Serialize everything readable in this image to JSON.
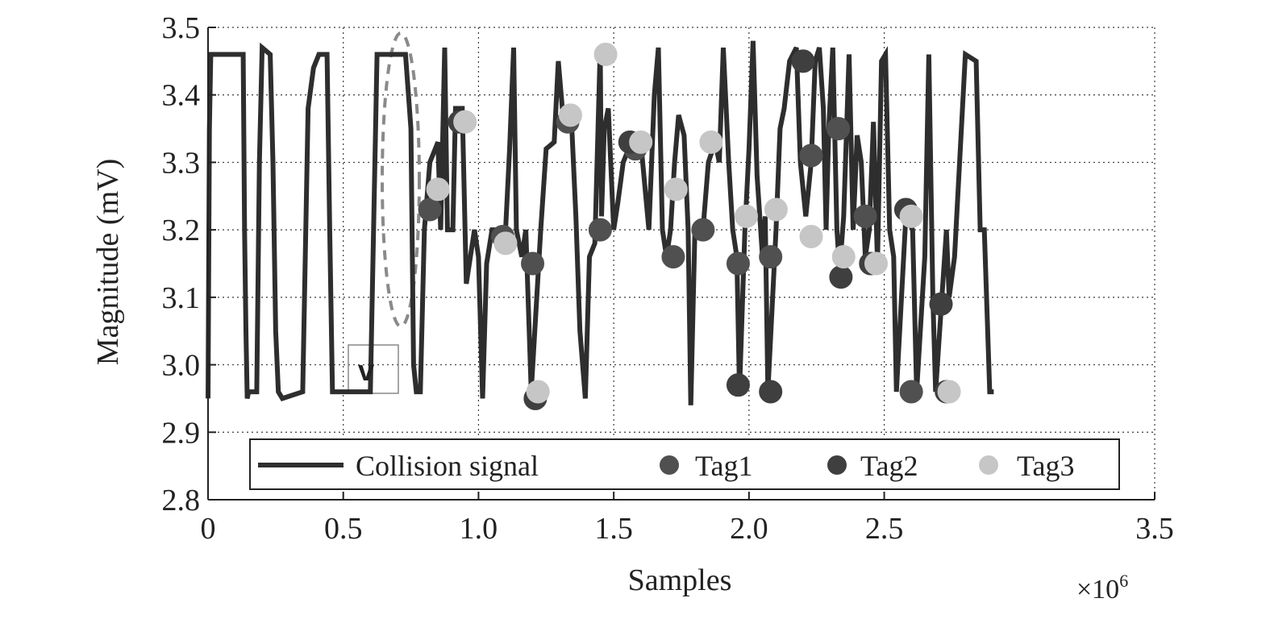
{
  "chart_data": {
    "type": "line",
    "xlabel": "Samples",
    "ylabel": "Magnitude (mV)",
    "x_multiplier_label": "×10",
    "x_multiplier_exponent": "6",
    "annotation_label": "v",
    "xlim": [
      0,
      3.5
    ],
    "ylim": [
      2.8,
      3.5
    ],
    "x_ticks": [
      0,
      0.5,
      1.0,
      1.5,
      2.0,
      2.5,
      3.5
    ],
    "x_tick_labels": [
      "0",
      "0.5",
      "1.0",
      "1.5",
      "2.0",
      "2.5",
      "3.5"
    ],
    "y_ticks": [
      2.8,
      2.9,
      3.0,
      3.1,
      3.2,
      3.3,
      3.4,
      3.5
    ],
    "y_tick_labels": [
      "2.8",
      "2.9",
      "3.0",
      "3.1",
      "3.2",
      "3.3",
      "3.4",
      "3.5"
    ],
    "grid": true,
    "legend_position": "bottom",
    "colors": {
      "signal": "#2e2e2e",
      "tag1": "#505050",
      "tag2": "#3f3f3f",
      "tag3": "#c6c6c6",
      "grid": "#3a3a3a"
    },
    "series": [
      {
        "name": "Collision signal",
        "kind": "line",
        "points": [
          [
            0,
            2.95
          ],
          [
            0.005,
            3.35
          ],
          [
            0.01,
            3.46
          ],
          [
            0.13,
            3.46
          ],
          [
            0.135,
            3.2
          ],
          [
            0.14,
            3.05
          ],
          [
            0.145,
            2.95
          ],
          [
            0.15,
            2.96
          ],
          [
            0.18,
            2.96
          ],
          [
            0.19,
            3.3
          ],
          [
            0.2,
            3.47
          ],
          [
            0.23,
            3.46
          ],
          [
            0.24,
            3.3
          ],
          [
            0.25,
            3.05
          ],
          [
            0.26,
            2.96
          ],
          [
            0.275,
            2.95
          ],
          [
            0.35,
            2.96
          ],
          [
            0.37,
            3.38
          ],
          [
            0.39,
            3.44
          ],
          [
            0.41,
            3.46
          ],
          [
            0.44,
            3.46
          ],
          [
            0.45,
            3.2
          ],
          [
            0.46,
            2.96
          ],
          [
            0.6,
            2.96
          ],
          [
            0.625,
            3.46
          ],
          [
            0.73,
            3.46
          ],
          [
            0.75,
            3.35
          ],
          [
            0.76,
            3.0
          ],
          [
            0.77,
            2.96
          ],
          [
            0.785,
            2.96
          ],
          [
            0.8,
            3.2
          ],
          [
            0.82,
            3.3
          ],
          [
            0.85,
            3.33
          ],
          [
            0.86,
            3.2
          ],
          [
            0.875,
            3.47
          ],
          [
            0.885,
            3.2
          ],
          [
            0.905,
            3.2
          ],
          [
            0.915,
            3.38
          ],
          [
            0.94,
            3.38
          ],
          [
            0.955,
            3.12
          ],
          [
            0.985,
            3.2
          ],
          [
            1.0,
            3.16
          ],
          [
            1.015,
            2.95
          ],
          [
            1.03,
            3.15
          ],
          [
            1.05,
            3.2
          ],
          [
            1.1,
            3.2
          ],
          [
            1.115,
            3.32
          ],
          [
            1.13,
            3.47
          ],
          [
            1.14,
            3.2
          ],
          [
            1.16,
            3.16
          ],
          [
            1.175,
            3.2
          ],
          [
            1.195,
            2.96
          ],
          [
            1.23,
            3.2
          ],
          [
            1.25,
            3.32
          ],
          [
            1.28,
            3.33
          ],
          [
            1.295,
            3.45
          ],
          [
            1.31,
            3.38
          ],
          [
            1.33,
            3.35
          ],
          [
            1.345,
            3.35
          ],
          [
            1.36,
            3.22
          ],
          [
            1.375,
            3.05
          ],
          [
            1.395,
            2.95
          ],
          [
            1.41,
            3.16
          ],
          [
            1.43,
            3.18
          ],
          [
            1.45,
            3.47
          ],
          [
            1.455,
            3.22
          ],
          [
            1.465,
            3.35
          ],
          [
            1.48,
            3.38
          ],
          [
            1.5,
            3.2
          ],
          [
            1.515,
            3.24
          ],
          [
            1.535,
            3.3
          ],
          [
            1.555,
            3.32
          ],
          [
            1.57,
            3.32
          ],
          [
            1.6,
            3.33
          ],
          [
            1.63,
            3.2
          ],
          [
            1.65,
            3.4
          ],
          [
            1.665,
            3.47
          ],
          [
            1.68,
            3.2
          ],
          [
            1.695,
            3.16
          ],
          [
            1.71,
            3.2
          ],
          [
            1.725,
            3.3
          ],
          [
            1.74,
            3.37
          ],
          [
            1.76,
            3.34
          ],
          [
            1.775,
            3.2
          ],
          [
            1.785,
            2.94
          ],
          [
            1.8,
            3.2
          ],
          [
            1.83,
            3.2
          ],
          [
            1.85,
            3.3
          ],
          [
            1.875,
            3.33
          ],
          [
            1.89,
            3.3
          ],
          [
            1.905,
            3.47
          ],
          [
            1.925,
            3.3
          ],
          [
            1.94,
            3.2
          ],
          [
            1.955,
            3.16
          ],
          [
            1.965,
            2.96
          ],
          [
            1.985,
            3.2
          ],
          [
            2.0,
            3.32
          ],
          [
            2.015,
            3.48
          ],
          [
            2.03,
            3.28
          ],
          [
            2.05,
            3.16
          ],
          [
            2.06,
            3.22
          ],
          [
            2.07,
            2.96
          ],
          [
            2.1,
            3.2
          ],
          [
            2.115,
            3.35
          ],
          [
            2.13,
            3.38
          ],
          [
            2.15,
            3.45
          ],
          [
            2.175,
            3.47
          ],
          [
            2.19,
            3.3
          ],
          [
            2.21,
            3.22
          ],
          [
            2.23,
            3.3
          ],
          [
            2.245,
            3.45
          ],
          [
            2.26,
            3.47
          ],
          [
            2.275,
            3.38
          ],
          [
            2.285,
            3.2
          ],
          [
            2.295,
            3.35
          ],
          [
            2.31,
            3.47
          ],
          [
            2.325,
            3.2
          ],
          [
            2.335,
            3.14
          ],
          [
            2.35,
            3.22
          ],
          [
            2.37,
            3.46
          ],
          [
            2.385,
            3.2
          ],
          [
            2.4,
            3.34
          ],
          [
            2.415,
            3.3
          ],
          [
            2.43,
            3.16
          ],
          [
            2.445,
            3.2
          ],
          [
            2.46,
            3.36
          ],
          [
            2.475,
            3.15
          ],
          [
            2.49,
            3.45
          ],
          [
            2.505,
            3.46
          ],
          [
            2.52,
            3.2
          ],
          [
            2.535,
            3.16
          ],
          [
            2.545,
            2.96
          ],
          [
            2.58,
            3.22
          ],
          [
            2.605,
            3.2
          ],
          [
            2.62,
            2.96
          ],
          [
            2.65,
            3.16
          ],
          [
            2.665,
            3.46
          ],
          [
            2.68,
            3.1
          ],
          [
            2.69,
            2.96
          ],
          [
            2.73,
            3.2
          ],
          [
            2.74,
            3.1
          ],
          [
            2.76,
            3.16
          ],
          [
            2.8,
            3.46
          ],
          [
            2.84,
            3.45
          ],
          [
            2.855,
            3.2
          ],
          [
            2.87,
            3.2
          ],
          [
            2.89,
            2.96
          ],
          [
            2.905,
            2.96
          ]
        ]
      },
      {
        "name": "Tag1",
        "kind": "scatter",
        "points": [
          [
            0.82,
            3.23
          ],
          [
            1.09,
            3.19
          ],
          [
            1.2,
            3.15
          ],
          [
            1.33,
            3.36
          ],
          [
            1.45,
            3.2
          ],
          [
            1.58,
            3.32
          ],
          [
            1.72,
            3.16
          ],
          [
            1.83,
            3.2
          ],
          [
            1.96,
            3.15
          ],
          [
            2.08,
            3.16
          ],
          [
            2.23,
            3.31
          ],
          [
            2.33,
            3.35
          ],
          [
            2.43,
            3.22
          ],
          [
            2.6,
            2.96
          ]
        ]
      },
      {
        "name": "Tag2",
        "kind": "scatter",
        "points": [
          [
            0.93,
            3.36
          ],
          [
            1.21,
            2.95
          ],
          [
            1.56,
            3.33
          ],
          [
            1.96,
            2.97
          ],
          [
            2.08,
            2.96
          ],
          [
            2.2,
            3.45
          ],
          [
            2.34,
            3.13
          ],
          [
            2.45,
            3.15
          ],
          [
            2.58,
            3.23
          ],
          [
            2.71,
            3.09
          ],
          [
            2.73,
            2.96
          ]
        ]
      },
      {
        "name": "Tag3",
        "kind": "scatter",
        "points": [
          [
            0.85,
            3.26
          ],
          [
            0.95,
            3.36
          ],
          [
            1.1,
            3.18
          ],
          [
            1.22,
            2.96
          ],
          [
            1.34,
            3.37
          ],
          [
            1.47,
            3.46
          ],
          [
            1.6,
            3.33
          ],
          [
            1.73,
            3.26
          ],
          [
            1.86,
            3.33
          ],
          [
            1.99,
            3.22
          ],
          [
            2.1,
            3.23
          ],
          [
            2.23,
            3.19
          ],
          [
            2.35,
            3.16
          ],
          [
            2.47,
            3.15
          ],
          [
            2.6,
            3.22
          ],
          [
            2.74,
            2.96
          ]
        ]
      }
    ]
  }
}
